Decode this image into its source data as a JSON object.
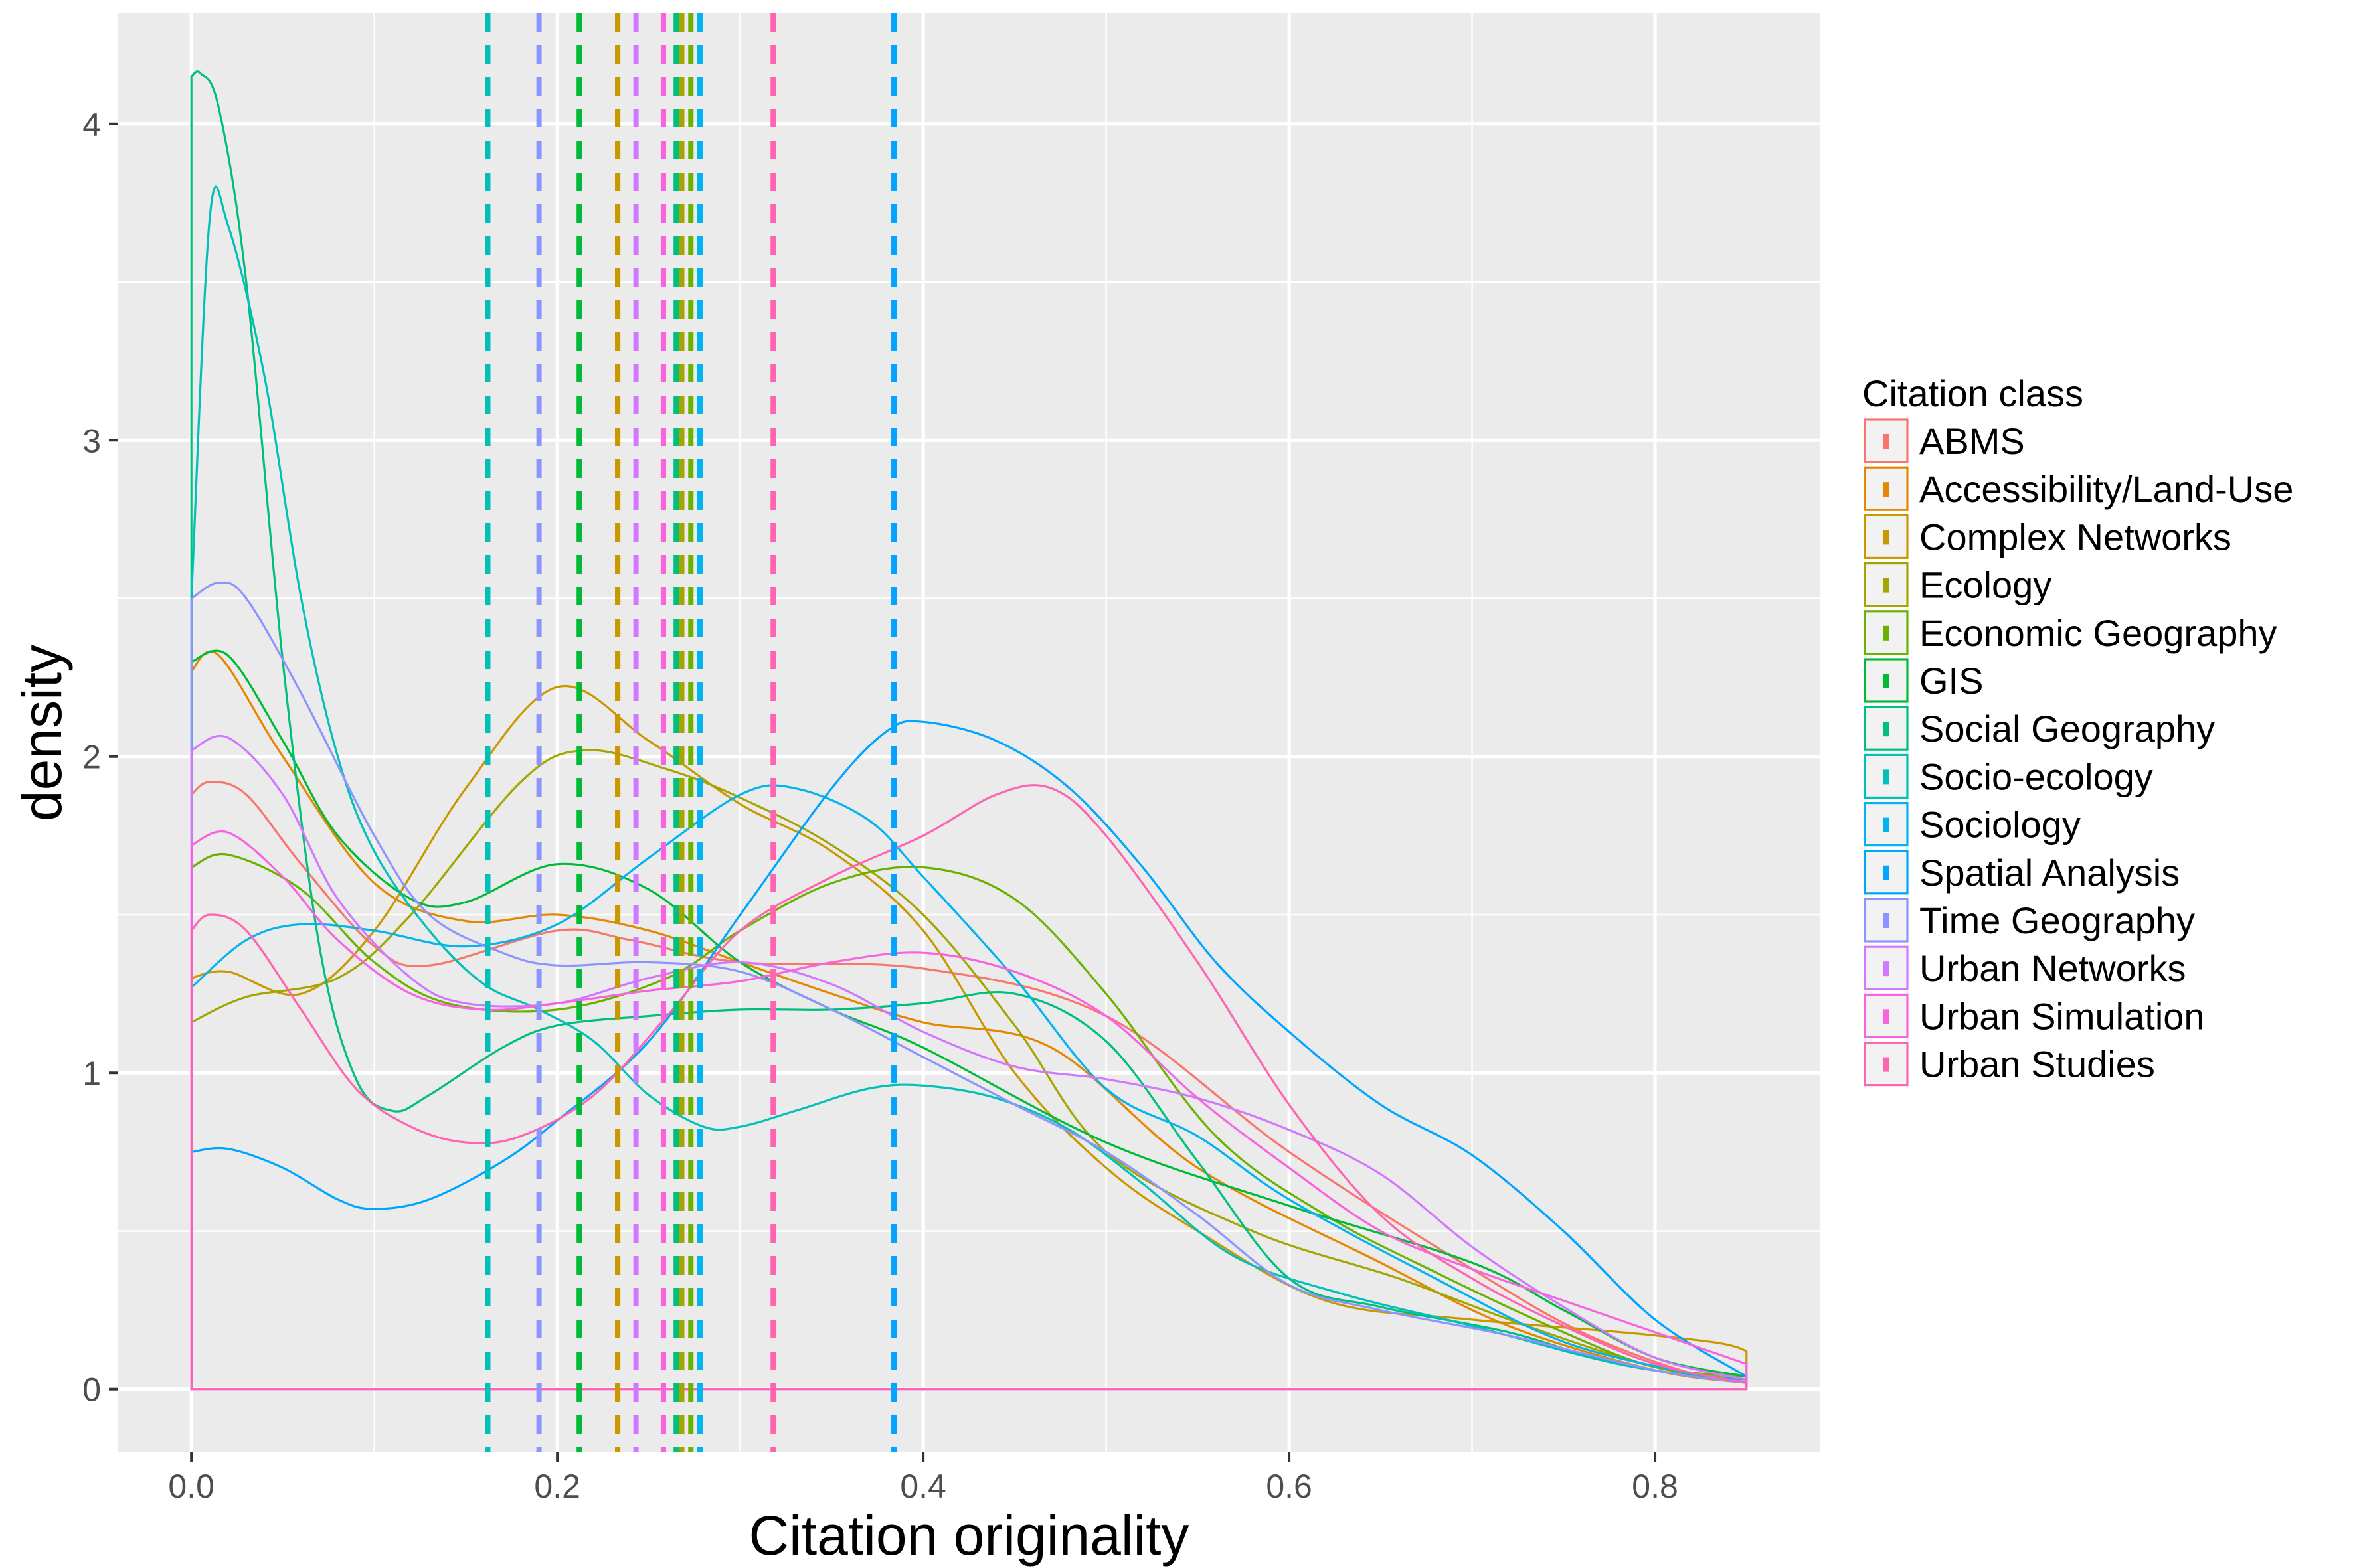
{
  "chart_data": {
    "type": "line",
    "xlabel": "Citation originality",
    "ylabel": "density",
    "xlim": [
      -0.04,
      0.89
    ],
    "ylim": [
      -0.2,
      4.35
    ],
    "x_ticks": [
      "0.0",
      "0.2",
      "0.4",
      "0.6",
      "0.8"
    ],
    "x_tick_values": [
      0,
      0.2,
      0.4,
      0.6,
      0.8
    ],
    "y_ticks": [
      "0",
      "1",
      "2",
      "3",
      "4"
    ],
    "y_tick_values": [
      0,
      1,
      2,
      3,
      4
    ],
    "grid": true,
    "legend": {
      "title": "Citation class",
      "position": "right"
    },
    "series": [
      {
        "name": "ABMS",
        "color": "#F8766D",
        "mean": 0.258,
        "points": [
          [
            0,
            1.88
          ],
          [
            0.01,
            1.92
          ],
          [
            0.03,
            1.88
          ],
          [
            0.06,
            1.66
          ],
          [
            0.1,
            1.4
          ],
          [
            0.13,
            1.34
          ],
          [
            0.2,
            1.45
          ],
          [
            0.24,
            1.42
          ],
          [
            0.3,
            1.35
          ],
          [
            0.4,
            1.33
          ],
          [
            0.5,
            1.18
          ],
          [
            0.6,
            0.75
          ],
          [
            0.7,
            0.38
          ],
          [
            0.76,
            0.18
          ],
          [
            0.82,
            0.05
          ],
          [
            0.85,
            0.03
          ]
        ]
      },
      {
        "name": "Accessibility/Land-Use",
        "color": "#E58700",
        "mean": 0.233,
        "points": [
          [
            0,
            2.27
          ],
          [
            0.015,
            2.32
          ],
          [
            0.05,
            2.0
          ],
          [
            0.1,
            1.6
          ],
          [
            0.15,
            1.48
          ],
          [
            0.2,
            1.5
          ],
          [
            0.25,
            1.45
          ],
          [
            0.3,
            1.35
          ],
          [
            0.35,
            1.25
          ],
          [
            0.4,
            1.16
          ],
          [
            0.47,
            1.08
          ],
          [
            0.55,
            0.7
          ],
          [
            0.65,
            0.4
          ],
          [
            0.72,
            0.2
          ],
          [
            0.8,
            0.06
          ],
          [
            0.85,
            0.02
          ]
        ]
      },
      {
        "name": "Complex Networks",
        "color": "#C99800",
        "mean": 0.233,
        "points": [
          [
            0,
            1.3
          ],
          [
            0.02,
            1.32
          ],
          [
            0.06,
            1.25
          ],
          [
            0.1,
            1.45
          ],
          [
            0.15,
            1.9
          ],
          [
            0.2,
            2.22
          ],
          [
            0.25,
            2.05
          ],
          [
            0.3,
            1.85
          ],
          [
            0.35,
            1.7
          ],
          [
            0.4,
            1.45
          ],
          [
            0.45,
            1.0
          ],
          [
            0.5,
            0.7
          ],
          [
            0.55,
            0.5
          ],
          [
            0.62,
            0.28
          ],
          [
            0.7,
            0.22
          ],
          [
            0.8,
            0.17
          ],
          [
            0.85,
            0.12
          ],
          [
            0.85,
            0
          ]
        ]
      },
      {
        "name": "Ecology",
        "color": "#A3A500",
        "mean": 0.268,
        "points": [
          [
            0,
            1.16
          ],
          [
            0.03,
            1.24
          ],
          [
            0.08,
            1.3
          ],
          [
            0.12,
            1.5
          ],
          [
            0.18,
            1.92
          ],
          [
            0.215,
            2.02
          ],
          [
            0.26,
            1.96
          ],
          [
            0.3,
            1.87
          ],
          [
            0.35,
            1.72
          ],
          [
            0.4,
            1.5
          ],
          [
            0.45,
            1.15
          ],
          [
            0.5,
            0.75
          ],
          [
            0.58,
            0.5
          ],
          [
            0.66,
            0.35
          ],
          [
            0.73,
            0.2
          ],
          [
            0.8,
            0.07
          ],
          [
            0.85,
            0.03
          ]
        ]
      },
      {
        "name": "Economic Geography",
        "color": "#6BB100",
        "mean": 0.273,
        "points": [
          [
            0,
            1.65
          ],
          [
            0.02,
            1.69
          ],
          [
            0.06,
            1.58
          ],
          [
            0.1,
            1.35
          ],
          [
            0.14,
            1.22
          ],
          [
            0.2,
            1.2
          ],
          [
            0.26,
            1.3
          ],
          [
            0.3,
            1.45
          ],
          [
            0.35,
            1.6
          ],
          [
            0.4,
            1.65
          ],
          [
            0.45,
            1.55
          ],
          [
            0.5,
            1.25
          ],
          [
            0.56,
            0.8
          ],
          [
            0.62,
            0.55
          ],
          [
            0.68,
            0.37
          ],
          [
            0.75,
            0.18
          ],
          [
            0.8,
            0.07
          ],
          [
            0.85,
            0.04
          ]
        ]
      },
      {
        "name": "GIS",
        "color": "#00BA38",
        "mean": 0.212,
        "points": [
          [
            0,
            2.3
          ],
          [
            0.02,
            2.32
          ],
          [
            0.05,
            2.05
          ],
          [
            0.08,
            1.75
          ],
          [
            0.12,
            1.55
          ],
          [
            0.15,
            1.54
          ],
          [
            0.2,
            1.66
          ],
          [
            0.25,
            1.58
          ],
          [
            0.3,
            1.35
          ],
          [
            0.35,
            1.2
          ],
          [
            0.4,
            1.08
          ],
          [
            0.5,
            0.78
          ],
          [
            0.6,
            0.58
          ],
          [
            0.7,
            0.4
          ],
          [
            0.75,
            0.25
          ],
          [
            0.8,
            0.1
          ],
          [
            0.85,
            0.04
          ]
        ]
      },
      {
        "name": "Social Geography",
        "color": "#00BF7D",
        "mean": 0.265,
        "points": [
          [
            0,
            4.15
          ],
          [
            0.005,
            4.16
          ],
          [
            0.015,
            4.05
          ],
          [
            0.03,
            3.5
          ],
          [
            0.05,
            2.3
          ],
          [
            0.07,
            1.4
          ],
          [
            0.09,
            0.98
          ],
          [
            0.11,
            0.88
          ],
          [
            0.13,
            0.93
          ],
          [
            0.17,
            1.08
          ],
          [
            0.2,
            1.15
          ],
          [
            0.25,
            1.18
          ],
          [
            0.3,
            1.2
          ],
          [
            0.35,
            1.2
          ],
          [
            0.4,
            1.22
          ],
          [
            0.45,
            1.25
          ],
          [
            0.5,
            1.1
          ],
          [
            0.55,
            0.72
          ],
          [
            0.6,
            0.35
          ],
          [
            0.65,
            0.26
          ],
          [
            0.72,
            0.18
          ],
          [
            0.78,
            0.08
          ],
          [
            0.85,
            0.02
          ]
        ]
      },
      {
        "name": "Socio-ecology",
        "color": "#00C0B8",
        "mean": 0.162,
        "points": [
          [
            0,
            2.5
          ],
          [
            0.01,
            3.7
          ],
          [
            0.02,
            3.68
          ],
          [
            0.04,
            3.2
          ],
          [
            0.06,
            2.5
          ],
          [
            0.08,
            2.0
          ],
          [
            0.1,
            1.7
          ],
          [
            0.13,
            1.45
          ],
          [
            0.16,
            1.28
          ],
          [
            0.19,
            1.2
          ],
          [
            0.22,
            1.1
          ],
          [
            0.25,
            0.93
          ],
          [
            0.28,
            0.83
          ],
          [
            0.3,
            0.83
          ],
          [
            0.33,
            0.88
          ],
          [
            0.37,
            0.95
          ],
          [
            0.4,
            0.96
          ],
          [
            0.44,
            0.92
          ],
          [
            0.48,
            0.82
          ],
          [
            0.52,
            0.65
          ],
          [
            0.57,
            0.42
          ],
          [
            0.63,
            0.3
          ],
          [
            0.7,
            0.2
          ],
          [
            0.78,
            0.08
          ],
          [
            0.85,
            0.02
          ]
        ]
      },
      {
        "name": "Sociology",
        "color": "#00B4EF",
        "mean": 0.278,
        "points": [
          [
            0,
            1.27
          ],
          [
            0.03,
            1.42
          ],
          [
            0.06,
            1.47
          ],
          [
            0.1,
            1.45
          ],
          [
            0.15,
            1.4
          ],
          [
            0.2,
            1.47
          ],
          [
            0.25,
            1.68
          ],
          [
            0.3,
            1.88
          ],
          [
            0.33,
            1.9
          ],
          [
            0.37,
            1.8
          ],
          [
            0.4,
            1.62
          ],
          [
            0.45,
            1.3
          ],
          [
            0.5,
            0.95
          ],
          [
            0.55,
            0.8
          ],
          [
            0.6,
            0.6
          ],
          [
            0.68,
            0.35
          ],
          [
            0.75,
            0.15
          ],
          [
            0.82,
            0.05
          ],
          [
            0.85,
            0.03
          ]
        ]
      },
      {
        "name": "Spatial Analysis",
        "color": "#00A5FF",
        "mean": 0.384,
        "points": [
          [
            0,
            0.75
          ],
          [
            0.02,
            0.76
          ],
          [
            0.05,
            0.7
          ],
          [
            0.08,
            0.6
          ],
          [
            0.1,
            0.57
          ],
          [
            0.13,
            0.6
          ],
          [
            0.17,
            0.72
          ],
          [
            0.2,
            0.85
          ],
          [
            0.25,
            1.1
          ],
          [
            0.3,
            1.5
          ],
          [
            0.35,
            1.9
          ],
          [
            0.38,
            2.08
          ],
          [
            0.4,
            2.11
          ],
          [
            0.44,
            2.05
          ],
          [
            0.48,
            1.9
          ],
          [
            0.52,
            1.65
          ],
          [
            0.56,
            1.35
          ],
          [
            0.6,
            1.13
          ],
          [
            0.65,
            0.9
          ],
          [
            0.7,
            0.74
          ],
          [
            0.75,
            0.5
          ],
          [
            0.8,
            0.22
          ],
          [
            0.85,
            0.04
          ]
        ]
      },
      {
        "name": "Time Geography",
        "color": "#8C94FF",
        "mean": 0.19,
        "points": [
          [
            0,
            2.5
          ],
          [
            0.015,
            2.55
          ],
          [
            0.03,
            2.5
          ],
          [
            0.06,
            2.2
          ],
          [
            0.1,
            1.75
          ],
          [
            0.13,
            1.5
          ],
          [
            0.17,
            1.38
          ],
          [
            0.2,
            1.34
          ],
          [
            0.25,
            1.35
          ],
          [
            0.3,
            1.32
          ],
          [
            0.35,
            1.2
          ],
          [
            0.4,
            1.05
          ],
          [
            0.45,
            0.9
          ],
          [
            0.5,
            0.75
          ],
          [
            0.55,
            0.55
          ],
          [
            0.6,
            0.33
          ],
          [
            0.65,
            0.25
          ],
          [
            0.72,
            0.17
          ],
          [
            0.8,
            0.06
          ],
          [
            0.85,
            0.02
          ]
        ]
      },
      {
        "name": "Urban Networks",
        "color": "#D277FF",
        "mean": 0.243,
        "points": [
          [
            0,
            2.02
          ],
          [
            0.02,
            2.06
          ],
          [
            0.05,
            1.88
          ],
          [
            0.08,
            1.55
          ],
          [
            0.12,
            1.3
          ],
          [
            0.15,
            1.22
          ],
          [
            0.2,
            1.22
          ],
          [
            0.25,
            1.3
          ],
          [
            0.3,
            1.35
          ],
          [
            0.35,
            1.28
          ],
          [
            0.4,
            1.13
          ],
          [
            0.45,
            1.02
          ],
          [
            0.5,
            0.98
          ],
          [
            0.55,
            0.92
          ],
          [
            0.6,
            0.82
          ],
          [
            0.65,
            0.68
          ],
          [
            0.7,
            0.45
          ],
          [
            0.75,
            0.26
          ],
          [
            0.8,
            0.1
          ],
          [
            0.85,
            0.03
          ]
        ]
      },
      {
        "name": "Urban Simulation",
        "color": "#F863DF",
        "mean": 0.258,
        "points": [
          [
            0,
            1.72
          ],
          [
            0.02,
            1.76
          ],
          [
            0.05,
            1.62
          ],
          [
            0.08,
            1.42
          ],
          [
            0.12,
            1.25
          ],
          [
            0.16,
            1.2
          ],
          [
            0.2,
            1.22
          ],
          [
            0.25,
            1.26
          ],
          [
            0.3,
            1.29
          ],
          [
            0.35,
            1.35
          ],
          [
            0.4,
            1.38
          ],
          [
            0.45,
            1.32
          ],
          [
            0.5,
            1.18
          ],
          [
            0.55,
            0.92
          ],
          [
            0.6,
            0.7
          ],
          [
            0.65,
            0.5
          ],
          [
            0.7,
            0.38
          ],
          [
            0.75,
            0.28
          ],
          [
            0.8,
            0.18
          ],
          [
            0.85,
            0.08
          ]
        ]
      },
      {
        "name": "Urban Studies",
        "color": "#FF64B0",
        "mean": 0.318,
        "points": [
          [
            0,
            1.45
          ],
          [
            0.01,
            1.5
          ],
          [
            0.03,
            1.45
          ],
          [
            0.06,
            1.2
          ],
          [
            0.09,
            0.95
          ],
          [
            0.12,
            0.83
          ],
          [
            0.15,
            0.78
          ],
          [
            0.18,
            0.8
          ],
          [
            0.22,
            0.93
          ],
          [
            0.26,
            1.18
          ],
          [
            0.3,
            1.45
          ],
          [
            0.35,
            1.62
          ],
          [
            0.4,
            1.75
          ],
          [
            0.44,
            1.88
          ],
          [
            0.47,
            1.9
          ],
          [
            0.5,
            1.75
          ],
          [
            0.55,
            1.35
          ],
          [
            0.6,
            0.9
          ],
          [
            0.65,
            0.55
          ],
          [
            0.7,
            0.35
          ],
          [
            0.75,
            0.2
          ],
          [
            0.8,
            0.08
          ],
          [
            0.85,
            0.02
          ]
        ]
      }
    ]
  }
}
